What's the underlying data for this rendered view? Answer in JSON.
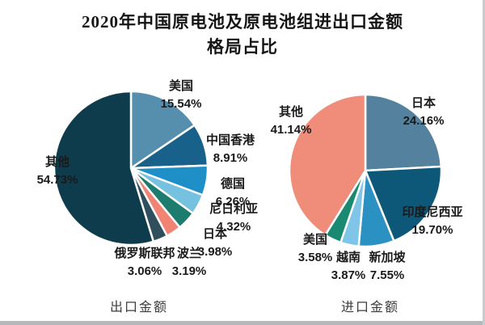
{
  "title": {
    "line1": "2020年中国原电池及原电池组进出口金额",
    "line2": "格局占比"
  },
  "chart_data": [
    {
      "type": "pie",
      "title": "出口金额",
      "labels": [
        "美国",
        "中国香港",
        "德国",
        "尼日利亚",
        "日本",
        "波兰",
        "俄罗斯联邦",
        "其他"
      ],
      "values": [
        15.54,
        8.91,
        6.26,
        4.32,
        3.98,
        3.19,
        3.06,
        54.73
      ],
      "colors": [
        "#568fae",
        "#17618a",
        "#1f8fc7",
        "#76c0e0",
        "#1c7c6e",
        "#f08373",
        "#2f4f5d",
        "#0e3c4d"
      ],
      "unit": "%",
      "start_angle_deg": 0,
      "direction": "clockwise",
      "legend": "none",
      "label_format": "name above percent, outside slices"
    },
    {
      "type": "pie",
      "title": "进口金额",
      "labels": [
        "日本",
        "印度尼西亚",
        "新加坡",
        "越南",
        "美国",
        "其他"
      ],
      "values": [
        24.16,
        19.7,
        7.55,
        3.87,
        3.58,
        41.14
      ],
      "colors": [
        "#54819e",
        "#0d5878",
        "#2b90c2",
        "#7ec5e8",
        "#198a71",
        "#f08d7a"
      ],
      "unit": "%",
      "start_angle_deg": 0,
      "direction": "clockwise",
      "legend": "none",
      "label_format": "name above percent, outside slices"
    }
  ]
}
